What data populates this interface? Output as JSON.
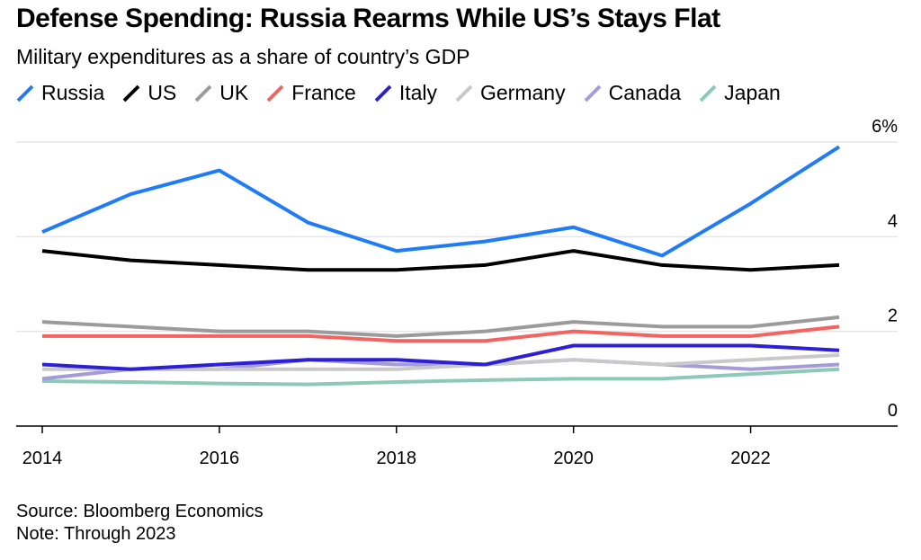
{
  "chart_data": {
    "type": "line",
    "title": "Defense Spending: Russia Rearms While US’s Stays Flat",
    "subtitle": "Military expenditures as a share of country’s GDP",
    "x": [
      2014,
      2015,
      2016,
      2017,
      2018,
      2019,
      2020,
      2021,
      2022,
      2023
    ],
    "x_tick_labels": [
      "2014",
      "2016",
      "2018",
      "2020",
      "2022"
    ],
    "y_tick_labels": [
      "0",
      "2",
      "4",
      "6%"
    ],
    "ylim": [
      0,
      6
    ],
    "grid": "horizontal",
    "legend_position": "top",
    "series": [
      {
        "name": "Russia",
        "color": "#1f7cf6",
        "values": [
          4.1,
          4.9,
          5.4,
          4.3,
          3.7,
          3.9,
          4.2,
          3.6,
          4.7,
          5.9
        ]
      },
      {
        "name": "US",
        "color": "#000000",
        "values": [
          3.7,
          3.5,
          3.4,
          3.3,
          3.3,
          3.4,
          3.7,
          3.4,
          3.3,
          3.4
        ]
      },
      {
        "name": "UK",
        "color": "#9b9b9b",
        "values": [
          2.2,
          2.1,
          2.0,
          2.0,
          1.9,
          2.0,
          2.2,
          2.1,
          2.1,
          2.3
        ]
      },
      {
        "name": "France",
        "color": "#f3635f",
        "values": [
          1.9,
          1.9,
          1.9,
          1.9,
          1.8,
          1.8,
          2.0,
          1.9,
          1.9,
          2.1
        ]
      },
      {
        "name": "Italy",
        "color": "#2d1fd6",
        "values": [
          1.3,
          1.2,
          1.3,
          1.4,
          1.4,
          1.3,
          1.7,
          1.7,
          1.7,
          1.6
        ]
      },
      {
        "name": "Germany",
        "color": "#c9c9c9",
        "values": [
          1.2,
          1.2,
          1.2,
          1.2,
          1.2,
          1.3,
          1.4,
          1.3,
          1.4,
          1.5
        ]
      },
      {
        "name": "Canada",
        "color": "#a59bd9",
        "values": [
          1.0,
          1.2,
          1.2,
          1.4,
          1.3,
          1.3,
          1.4,
          1.3,
          1.2,
          1.3
        ]
      },
      {
        "name": "Japan",
        "color": "#8ccab7",
        "values": [
          0.95,
          0.93,
          0.9,
          0.88,
          0.93,
          0.97,
          1.0,
          1.0,
          1.1,
          1.2
        ]
      }
    ]
  },
  "footer": {
    "source": "Source: Bloomberg Economics",
    "note": "Note: Through 2023"
  }
}
